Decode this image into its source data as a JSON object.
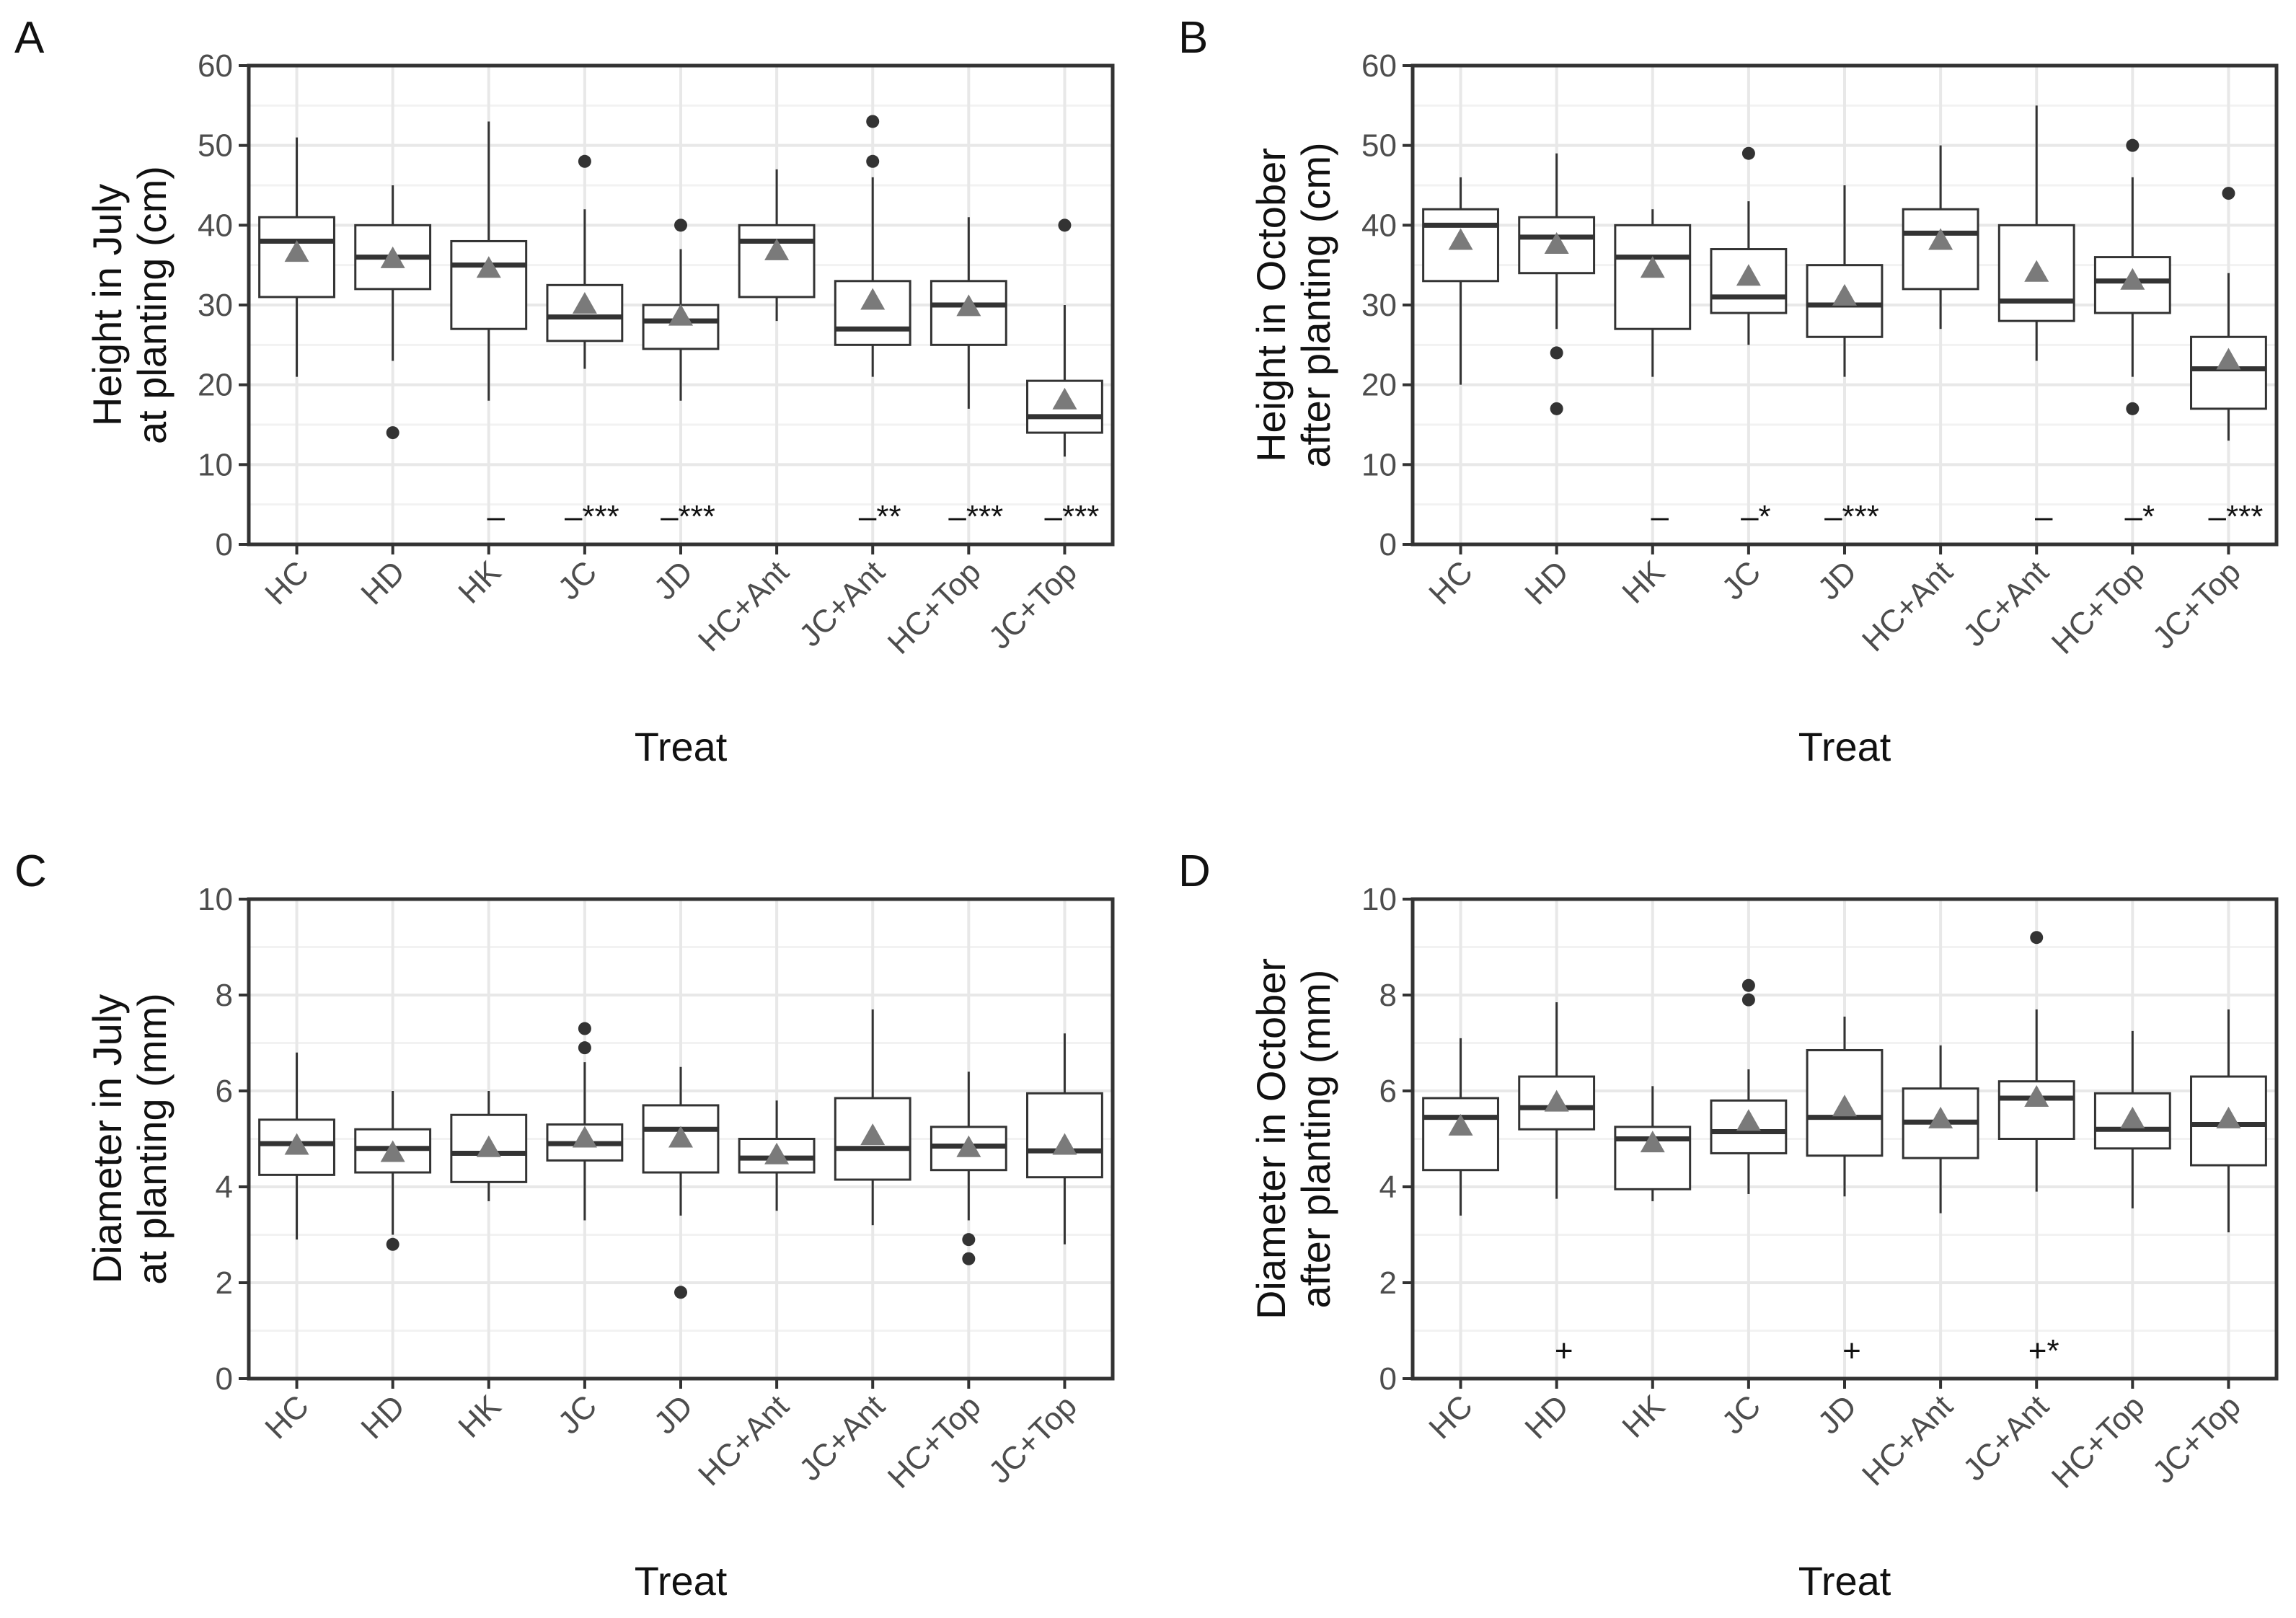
{
  "chart_data": [
    {
      "type": "box",
      "panel": "A",
      "ylabel": [
        "Height in July",
        "at planting (cm)"
      ],
      "xlabel": "Treat",
      "categories": [
        "HC",
        "HD",
        "HK",
        "JC",
        "JD",
        "HC+Ant",
        "JC+Ant",
        "HC+Top",
        "JC+Top"
      ],
      "ylim": [
        0,
        60
      ],
      "yticks": [
        0,
        10,
        20,
        30,
        40,
        50,
        60
      ],
      "grid": true,
      "mean_color": "#7a7a7a",
      "boxes": [
        {
          "lower": 21,
          "q1": 31,
          "median": 38,
          "q3": 41,
          "upper": 51,
          "mean": 36.5,
          "outliers": []
        },
        {
          "lower": 23,
          "q1": 32,
          "median": 36,
          "q3": 40,
          "upper": 45,
          "mean": 35.7,
          "outliers": [
            14
          ]
        },
        {
          "lower": 18,
          "q1": 27,
          "median": 35,
          "q3": 38,
          "upper": 53,
          "mean": 34.5,
          "outliers": []
        },
        {
          "lower": 22,
          "q1": 25.5,
          "median": 28.5,
          "q3": 32.5,
          "upper": 42,
          "mean": 30,
          "outliers": [
            48
          ]
        },
        {
          "lower": 18,
          "q1": 24.5,
          "median": 28,
          "q3": 30,
          "upper": 37,
          "mean": 28.5,
          "outliers": [
            40
          ]
        },
        {
          "lower": 28,
          "q1": 31,
          "median": 38,
          "q3": 40,
          "upper": 47,
          "mean": 36.7,
          "outliers": []
        },
        {
          "lower": 21,
          "q1": 25,
          "median": 27,
          "q3": 33,
          "upper": 46,
          "mean": 30.5,
          "outliers": [
            48,
            53
          ]
        },
        {
          "lower": 17,
          "q1": 25,
          "median": 30,
          "q3": 33,
          "upper": 41,
          "mean": 29.7,
          "outliers": []
        },
        {
          "lower": 11,
          "q1": 14,
          "median": 16,
          "q3": 20.5,
          "upper": 30,
          "mean": 18,
          "outliers": [
            40
          ]
        }
      ],
      "annotations": [
        null,
        null,
        "–",
        "–***",
        "–***",
        null,
        "–**",
        "–***",
        "–***"
      ]
    },
    {
      "type": "box",
      "panel": "B",
      "ylabel": [
        "Height in October",
        "after planting (cm)"
      ],
      "xlabel": "Treat",
      "categories": [
        "HC",
        "HD",
        "HK",
        "JC",
        "JD",
        "HC+Ant",
        "JC+Ant",
        "HC+Top",
        "JC+Top"
      ],
      "ylim": [
        0,
        60
      ],
      "yticks": [
        0,
        10,
        20,
        30,
        40,
        50,
        60
      ],
      "grid": true,
      "mean_color": "#7a7a7a",
      "boxes": [
        {
          "lower": 20,
          "q1": 33,
          "median": 40,
          "q3": 42,
          "upper": 46,
          "mean": 38,
          "outliers": []
        },
        {
          "lower": 27,
          "q1": 34,
          "median": 38.5,
          "q3": 41,
          "upper": 49,
          "mean": 37.5,
          "outliers": [
            24,
            17
          ]
        },
        {
          "lower": 21,
          "q1": 27,
          "median": 36,
          "q3": 40,
          "upper": 42,
          "mean": 34.5,
          "outliers": []
        },
        {
          "lower": 25,
          "q1": 29,
          "median": 31,
          "q3": 37,
          "upper": 43,
          "mean": 33.5,
          "outliers": [
            49
          ]
        },
        {
          "lower": 21,
          "q1": 26,
          "median": 30,
          "q3": 35,
          "upper": 45,
          "mean": 31,
          "outliers": []
        },
        {
          "lower": 27,
          "q1": 32,
          "median": 39,
          "q3": 42,
          "upper": 50,
          "mean": 38,
          "outliers": []
        },
        {
          "lower": 23,
          "q1": 28,
          "median": 30.5,
          "q3": 40,
          "upper": 55,
          "mean": 34,
          "outliers": []
        },
        {
          "lower": 21,
          "q1": 29,
          "median": 33,
          "q3": 36,
          "upper": 46,
          "mean": 33,
          "outliers": [
            50,
            17
          ]
        },
        {
          "lower": 13,
          "q1": 17,
          "median": 22,
          "q3": 26,
          "upper": 34,
          "mean": 23,
          "outliers": [
            44
          ]
        }
      ],
      "annotations": [
        null,
        null,
        "–",
        "–*",
        "–***",
        null,
        "–",
        "–*",
        "–***"
      ]
    },
    {
      "type": "box",
      "panel": "C",
      "ylabel": [
        "Diameter in July",
        "at planting (mm)"
      ],
      "xlabel": "Treat",
      "categories": [
        "HC",
        "HD",
        "HK",
        "JC",
        "JD",
        "HC+Ant",
        "JC+Ant",
        "HC+Top",
        "JC+Top"
      ],
      "ylim": [
        0,
        10
      ],
      "yticks": [
        0,
        2,
        4,
        6,
        8,
        10
      ],
      "grid": true,
      "mean_color": "#7a7a7a",
      "boxes": [
        {
          "lower": 2.9,
          "q1": 4.25,
          "median": 4.9,
          "q3": 5.4,
          "upper": 6.8,
          "mean": 4.85,
          "outliers": []
        },
        {
          "lower": 3.0,
          "q1": 4.3,
          "median": 4.8,
          "q3": 5.2,
          "upper": 6.0,
          "mean": 4.7,
          "outliers": [
            2.8
          ]
        },
        {
          "lower": 3.7,
          "q1": 4.1,
          "median": 4.7,
          "q3": 5.5,
          "upper": 6.0,
          "mean": 4.8,
          "outliers": []
        },
        {
          "lower": 3.3,
          "q1": 4.55,
          "median": 4.9,
          "q3": 5.3,
          "upper": 6.6,
          "mean": 5.0,
          "outliers": [
            6.9,
            7.3
          ]
        },
        {
          "lower": 3.4,
          "q1": 4.3,
          "median": 5.2,
          "q3": 5.7,
          "upper": 6.5,
          "mean": 5.0,
          "outliers": [
            1.8
          ]
        },
        {
          "lower": 3.5,
          "q1": 4.3,
          "median": 4.6,
          "q3": 5.0,
          "upper": 5.8,
          "mean": 4.65,
          "outliers": []
        },
        {
          "lower": 3.2,
          "q1": 4.15,
          "median": 4.8,
          "q3": 5.85,
          "upper": 7.7,
          "mean": 5.05,
          "outliers": []
        },
        {
          "lower": 3.3,
          "q1": 4.35,
          "median": 4.85,
          "q3": 5.25,
          "upper": 6.4,
          "mean": 4.8,
          "outliers": [
            2.9,
            2.5
          ]
        },
        {
          "lower": 2.8,
          "q1": 4.2,
          "median": 4.75,
          "q3": 5.95,
          "upper": 7.2,
          "mean": 4.85,
          "outliers": []
        }
      ],
      "annotations": [
        null,
        null,
        null,
        null,
        null,
        null,
        null,
        null,
        null
      ]
    },
    {
      "type": "box",
      "panel": "D",
      "ylabel": [
        "Diameter in October",
        "after planting (mm)"
      ],
      "xlabel": "Treat",
      "categories": [
        "HC",
        "HD",
        "HK",
        "JC",
        "JD",
        "HC+Ant",
        "JC+Ant",
        "HC+Top",
        "JC+Top"
      ],
      "ylim": [
        0,
        10
      ],
      "yticks": [
        0,
        2,
        4,
        6,
        8,
        10
      ],
      "grid": true,
      "mean_color": "#7a7a7a",
      "boxes": [
        {
          "lower": 3.4,
          "q1": 4.35,
          "median": 5.45,
          "q3": 5.85,
          "upper": 7.1,
          "mean": 5.25,
          "outliers": []
        },
        {
          "lower": 3.75,
          "q1": 5.2,
          "median": 5.65,
          "q3": 6.3,
          "upper": 7.85,
          "mean": 5.75,
          "outliers": []
        },
        {
          "lower": 3.7,
          "q1": 3.95,
          "median": 5.0,
          "q3": 5.25,
          "upper": 6.1,
          "mean": 4.9,
          "outliers": []
        },
        {
          "lower": 3.85,
          "q1": 4.7,
          "median": 5.15,
          "q3": 5.8,
          "upper": 6.45,
          "mean": 5.35,
          "outliers": [
            7.9,
            8.2
          ]
        },
        {
          "lower": 3.8,
          "q1": 4.65,
          "median": 5.45,
          "q3": 6.85,
          "upper": 7.55,
          "mean": 5.65,
          "outliers": []
        },
        {
          "lower": 3.45,
          "q1": 4.6,
          "median": 5.35,
          "q3": 6.05,
          "upper": 6.95,
          "mean": 5.4,
          "outliers": []
        },
        {
          "lower": 3.9,
          "q1": 5.0,
          "median": 5.85,
          "q3": 6.2,
          "upper": 7.7,
          "mean": 5.85,
          "outliers": [
            9.2
          ]
        },
        {
          "lower": 3.55,
          "q1": 4.8,
          "median": 5.2,
          "q3": 5.95,
          "upper": 7.25,
          "mean": 5.4,
          "outliers": []
        },
        {
          "lower": 3.05,
          "q1": 4.45,
          "median": 5.3,
          "q3": 6.3,
          "upper": 7.7,
          "mean": 5.4,
          "outliers": []
        }
      ],
      "annotations": [
        null,
        "+",
        null,
        null,
        "+",
        null,
        "+*",
        null,
        null
      ]
    }
  ]
}
